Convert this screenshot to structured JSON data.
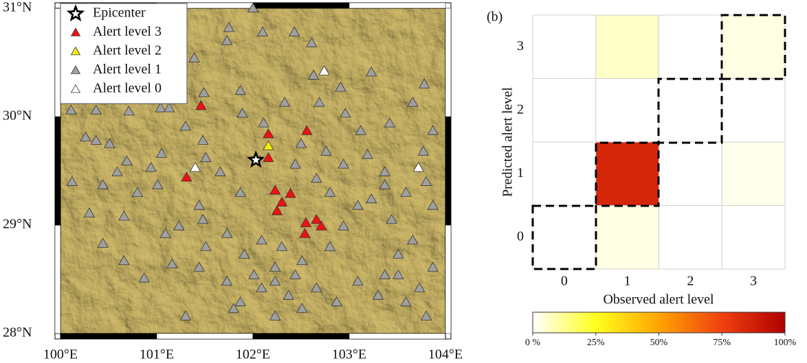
{
  "chart_data": [
    {
      "type": "scatter",
      "xlim": [
        100,
        104
      ],
      "ylim": [
        28,
        31
      ],
      "xticks": [
        {
          "value": 100,
          "label": "100°E"
        },
        {
          "value": 101,
          "label": "101°E"
        },
        {
          "value": 102,
          "label": "102°E"
        },
        {
          "value": 103,
          "label": "103°E"
        },
        {
          "value": 104,
          "label": "104°E"
        }
      ],
      "yticks": [
        {
          "value": 28,
          "label": "28°N"
        },
        {
          "value": 29,
          "label": "29°N"
        },
        {
          "value": 30,
          "label": "30°N"
        },
        {
          "value": 31,
          "label": "31°N"
        }
      ],
      "series": [
        {
          "name": "Epicenter",
          "color": "#000000",
          "marker": "star",
          "x": [
            102.03
          ],
          "y": [
            29.6
          ]
        },
        {
          "name": "Alert level 3",
          "color": "#ee1111",
          "marker": "triangle",
          "x": [
            101.46,
            101.31,
            102.16,
            102.16,
            102.56,
            102.23,
            102.39,
            102.3,
            102.25,
            102.55,
            102.66,
            102.71,
            102.54
          ],
          "y": [
            30.1,
            29.44,
            29.84,
            29.62,
            29.87,
            29.32,
            29.29,
            29.21,
            29.13,
            29.02,
            29.05,
            28.99,
            28.92
          ]
        },
        {
          "name": "Alert level 2",
          "color": "#f2ee10",
          "marker": "triangle",
          "x": [
            102.16
          ],
          "y": [
            29.73
          ]
        },
        {
          "name": "Alert level 1",
          "color": "#a0a0a0",
          "marker": "triangle",
          "x": [
            100.11,
            100.37,
            100.71,
            101.04,
            101.13,
            101.39,
            101.49,
            101.73,
            101.75,
            102.1,
            102.0,
            102.43,
            102.61,
            102.63,
            102.91,
            103.23,
            103.78,
            103.66,
            103.87,
            103.77,
            103.42,
            103.12,
            102.96,
            102.69,
            102.33,
            101.87,
            101.89,
            102.11,
            102.5,
            102.76,
            102.94,
            103.19,
            103.37,
            103.59,
            103.8,
            103.87,
            103.44,
            103.66,
            103.87,
            103.73,
            103.51,
            103.3,
            103.09,
            102.87,
            102.66,
            102.44,
            102.23,
            102.09,
            101.87,
            101.73,
            101.91,
            102.09,
            102.3,
            102.51,
            102.8,
            102.94,
            103.09,
            102.8,
            102.66,
            102.44,
            101.87,
            101.66,
            101.51,
            101.44,
            101.48,
            101.51,
            101.44,
            101.16,
            100.87,
            100.66,
            100.44,
            100.3,
            100.66,
            100.8,
            101.01,
            100.44,
            100.12,
            100.59,
            100.69,
            100.51,
            100.37,
            100.26,
            100.94,
            101.05,
            101.3,
            101.48,
            101.09,
            101.23,
            101.73,
            101.8,
            102.23,
            102.51,
            103.37,
            103.8,
            101.3,
            103.59,
            103.51,
            103.37,
            103.23,
            102.23,
            102.01,
            102.37
          ],
          "y": [
            30.06,
            30.06,
            30.05,
            30.08,
            30.08,
            30.54,
            30.22,
            30.7,
            30.82,
            30.78,
            31.0,
            30.78,
            30.68,
            30.38,
            30.27,
            30.41,
            30.3,
            30.13,
            29.87,
            29.68,
            29.94,
            29.87,
            30.03,
            30.13,
            30.13,
            30.24,
            30.03,
            29.94,
            29.75,
            29.68,
            29.56,
            29.65,
            29.49,
            29.3,
            29.4,
            29.18,
            29.05,
            28.86,
            28.61,
            28.42,
            28.54,
            28.35,
            28.48,
            28.29,
            28.42,
            28.54,
            28.61,
            28.42,
            28.29,
            28.48,
            28.73,
            28.86,
            28.8,
            28.67,
            28.8,
            28.99,
            29.18,
            29.3,
            29.43,
            29.56,
            29.3,
            29.49,
            29.62,
            29.18,
            29.05,
            28.8,
            28.61,
            28.64,
            28.51,
            28.67,
            28.83,
            29.11,
            29.08,
            29.3,
            29.37,
            29.37,
            29.4,
            29.49,
            29.59,
            29.75,
            29.78,
            29.81,
            29.53,
            29.66,
            29.91,
            29.78,
            28.92,
            28.99,
            28.92,
            28.23,
            28.16,
            28.23,
            28.54,
            28.16,
            28.16,
            28.29,
            28.73,
            29.37,
            29.24,
            28.48,
            28.54,
            28.35
          ]
        },
        {
          "name": "Alert level 0",
          "color": "#ffffff",
          "marker": "triangle",
          "x": [
            102.74,
            101.4,
            103.72
          ],
          "y": [
            30.42,
            29.53,
            29.53
          ]
        }
      ]
    },
    {
      "type": "heatmap",
      "panel_label": "(b)",
      "xlabel": "Observed alert level",
      "ylabel": "Predicted alert level",
      "x_categories": [
        "0",
        "1",
        "2",
        "3"
      ],
      "y_categories": [
        "0",
        "1",
        "2",
        "3"
      ],
      "z": [
        [
          0,
          3,
          0,
          0
        ],
        [
          0,
          85,
          0,
          2
        ],
        [
          0,
          0,
          0,
          0
        ],
        [
          0,
          6,
          0,
          3
        ]
      ],
      "clim": [
        0,
        100
      ],
      "colorscale": [
        {
          "value": 0,
          "color": "#ffffff"
        },
        {
          "value": 25,
          "color": "#ffff20"
        },
        {
          "value": 50,
          "color": "#ffa500"
        },
        {
          "value": 75,
          "color": "#f04010"
        },
        {
          "value": 100,
          "color": "#b00000"
        }
      ],
      "colorbar_ticks": [
        {
          "value": 0,
          "label": "0 %"
        },
        {
          "value": 25,
          "label": "25%"
        },
        {
          "value": 50,
          "label": "50%"
        },
        {
          "value": 75,
          "label": "75%"
        },
        {
          "value": 100,
          "label": "100%"
        }
      ]
    }
  ]
}
